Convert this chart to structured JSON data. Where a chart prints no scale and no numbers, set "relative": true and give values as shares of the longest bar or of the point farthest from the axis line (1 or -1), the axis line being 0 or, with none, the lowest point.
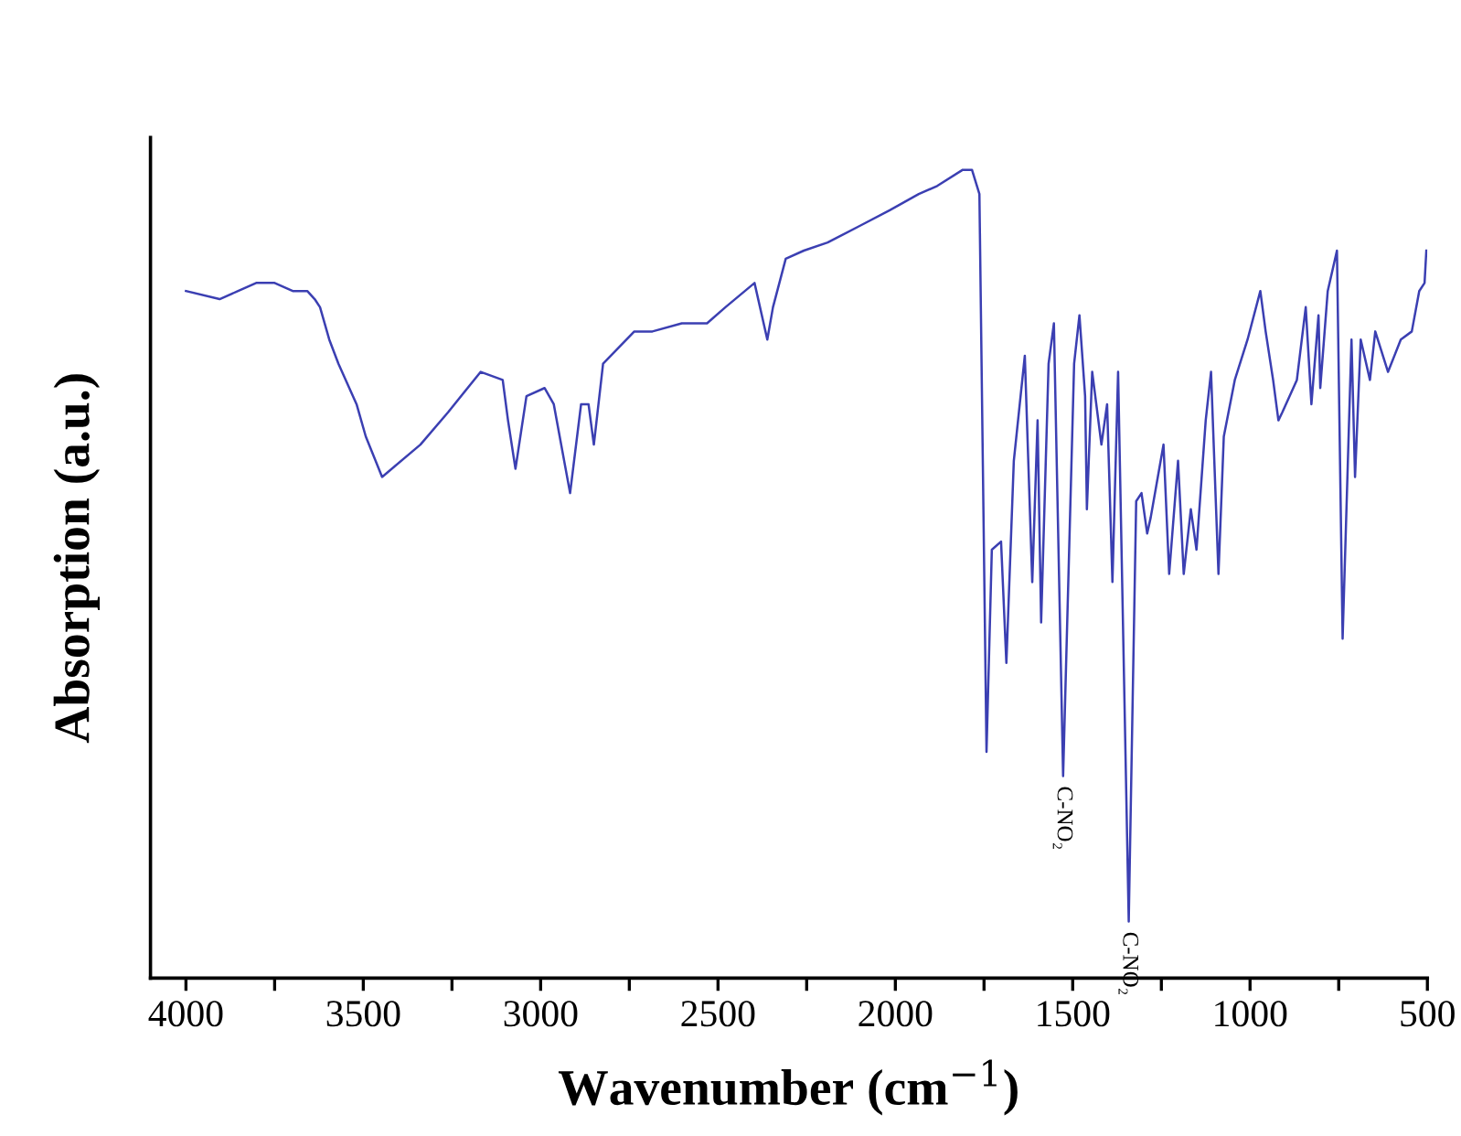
{
  "chart_data": {
    "type": "line",
    "relative": true,
    "xlabel": "Wavenumber (cm$^{−1}$)",
    "ylabel": "Absorption (a.u.)",
    "xlim": [
      4100,
      500
    ],
    "xticks": [
      4000,
      {
        "value": 3750,
        "label": null
      },
      3500,
      {
        "value": 3250,
        "label": null
      },
      3000,
      {
        "value": 2750,
        "label": null
      },
      2500,
      {
        "value": 2250,
        "label": null
      },
      2000,
      {
        "value": 1750,
        "label": null
      },
      1500,
      {
        "value": 1250,
        "label": null
      },
      1000,
      {
        "value": 750,
        "label": null
      },
      500
    ],
    "tick_labels": "x",
    "grid": false,
    "legend": false,
    "marker": "none",
    "line_style": "solid",
    "annotations": [
      {
        "text": "C-NO₂",
        "x": 1527,
        "y": 0.25
      },
      {
        "text": "C-NO₂",
        "x": 1342,
        "y": 0.07
      }
    ],
    "series": [
      {
        "color": "#3b3fb2",
        "x": [
          4000,
          3905,
          3853,
          3802,
          3776,
          3750,
          3699,
          3658,
          3637,
          3622,
          3596,
          3570,
          3519,
          3493,
          3447,
          3339,
          3261,
          3169,
          3107,
          3092,
          3071,
          3040,
          2989,
          2963,
          2917,
          2886,
          2865,
          2850,
          2824,
          2736,
          2685,
          2602,
          2531,
          2479,
          2397,
          2361,
          2345,
          2309,
          2258,
          2191,
          2103,
          2016,
          1934,
          1882,
          1810,
          1784,
          1763,
          1743,
          1728,
          1702,
          1687,
          1666,
          1635,
          1614,
          1599,
          1589,
          1568,
          1553,
          1527,
          1496,
          1481,
          1465,
          1460,
          1445,
          1419,
          1403,
          1388,
          1372,
          1342,
          1321,
          1306,
          1290,
          1280,
          1244,
          1228,
          1203,
          1187,
          1167,
          1151,
          1125,
          1110,
          1089,
          1074,
          1043,
          1007,
          971,
          956,
          935,
          920,
          909,
          868,
          843,
          827,
          807,
          802,
          781,
          755,
          739,
          714,
          704,
          688,
          662,
          647,
          611,
          575,
          544,
          523,
          508,
          503
        ],
        "values": [
          0.85,
          0.84,
          0.85,
          0.86,
          0.86,
          0.86,
          0.85,
          0.85,
          0.84,
          0.83,
          0.79,
          0.76,
          0.71,
          0.67,
          0.62,
          0.66,
          0.7,
          0.75,
          0.74,
          0.69,
          0.63,
          0.72,
          0.73,
          0.71,
          0.6,
          0.71,
          0.71,
          0.66,
          0.76,
          0.8,
          0.8,
          0.81,
          0.81,
          0.83,
          0.86,
          0.79,
          0.83,
          0.89,
          0.9,
          0.91,
          0.93,
          0.95,
          0.97,
          0.98,
          1.0,
          1.0,
          0.97,
          0.28,
          0.53,
          0.54,
          0.39,
          0.64,
          0.77,
          0.49,
          0.69,
          0.44,
          0.76,
          0.81,
          0.25,
          0.76,
          0.82,
          0.72,
          0.58,
          0.75,
          0.66,
          0.71,
          0.49,
          0.75,
          0.07,
          0.59,
          0.6,
          0.55,
          0.57,
          0.66,
          0.5,
          0.64,
          0.5,
          0.58,
          0.53,
          0.69,
          0.75,
          0.5,
          0.67,
          0.74,
          0.79,
          0.85,
          0.8,
          0.74,
          0.69,
          0.7,
          0.74,
          0.83,
          0.71,
          0.82,
          0.73,
          0.85,
          0.9,
          0.42,
          0.79,
          0.62,
          0.79,
          0.74,
          0.8,
          0.75,
          0.79,
          0.8,
          0.85,
          0.86,
          0.9
        ]
      }
    ]
  }
}
